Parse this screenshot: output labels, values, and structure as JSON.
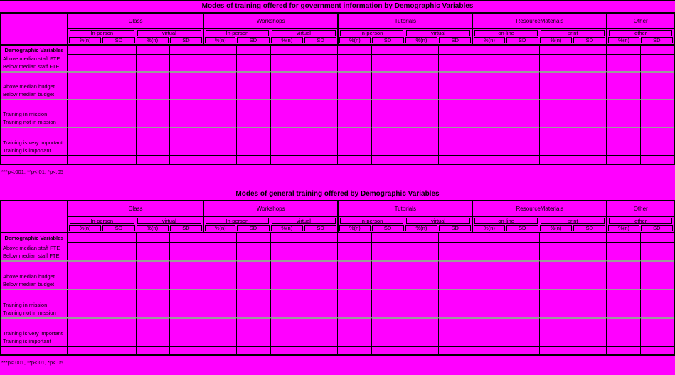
{
  "page": {
    "background_color": "#ff00ff",
    "grid_line_color": "#000000",
    "divider_color": "#9b9b9b"
  },
  "tables": [
    {
      "title": "Modes of training offered for government information by Demographic Variables",
      "row_header": "Demographic Variables",
      "footnote": "***p<.001, **p<.01, *p<.05",
      "groups": [
        {
          "label": "Class",
          "subgroups": [
            {
              "label": "In-person",
              "cols": [
                "%(n)",
                "SD"
              ]
            },
            {
              "label": "virtual",
              "cols": [
                "%(n)",
                "SD"
              ]
            }
          ]
        },
        {
          "label": "Workshops",
          "subgroups": [
            {
              "label": "In-person",
              "cols": [
                "%(n)",
                "SD"
              ]
            },
            {
              "label": "virtual",
              "cols": [
                "%(n)",
                "SD"
              ]
            }
          ]
        },
        {
          "label": "Tutorials",
          "subgroups": [
            {
              "label": "In-person",
              "cols": [
                "%(n)",
                "SD"
              ]
            },
            {
              "label": "virtual",
              "cols": [
                "%(n)",
                "SD"
              ]
            }
          ]
        },
        {
          "label": "ResourceMaterials",
          "subgroups": [
            {
              "label": "on-line",
              "cols": [
                "%(n)",
                "SD"
              ]
            },
            {
              "label": "print",
              "cols": [
                "%(n)",
                "SD"
              ]
            }
          ]
        },
        {
          "label": "Other",
          "subgroups": [
            {
              "label": "other",
              "cols": [
                "%(n)",
                "SD"
              ]
            }
          ]
        }
      ],
      "rows": [
        {
          "labels": [
            "Above median staff FTE",
            "Below median staff FTE"
          ]
        },
        {
          "labels": [
            "Above median budget",
            "Below median budget"
          ]
        },
        {
          "labels": [
            "Training in mission",
            "Training not in mission"
          ]
        },
        {
          "labels": [
            "Training is very important",
            "Training is important"
          ]
        }
      ],
      "cells": "empty"
    },
    {
      "title": "Modes of general training offered by Demographic Variables",
      "row_header": "Demographic Variables",
      "footnote": "***p<.001, **p<.01, *p<.05",
      "groups": [
        {
          "label": "Class",
          "subgroups": [
            {
              "label": "In-person",
              "cols": [
                "%(n)",
                "SD"
              ]
            },
            {
              "label": "virtual",
              "cols": [
                "%(n)",
                "SD"
              ]
            }
          ]
        },
        {
          "label": "Workshops",
          "subgroups": [
            {
              "label": "In-person",
              "cols": [
                "%(n)",
                "SD"
              ]
            },
            {
              "label": "virtual",
              "cols": [
                "%(n)",
                "SD"
              ]
            }
          ]
        },
        {
          "label": "Tutorials",
          "subgroups": [
            {
              "label": "In-person",
              "cols": [
                "%(n)",
                "SD"
              ]
            },
            {
              "label": "virtual",
              "cols": [
                "%(n)",
                "SD"
              ]
            }
          ]
        },
        {
          "label": "ResourceMaterials",
          "subgroups": [
            {
              "label": "on-line",
              "cols": [
                "%(n)",
                "SD"
              ]
            },
            {
              "label": "print",
              "cols": [
                "%(n)",
                "SD"
              ]
            }
          ]
        },
        {
          "label": "Other",
          "subgroups": [
            {
              "label": "other",
              "cols": [
                "%(n)",
                "SD"
              ]
            }
          ]
        }
      ],
      "rows": [
        {
          "labels": [
            "Above median staff FTE",
            "Below median staff FTE"
          ]
        },
        {
          "labels": [
            "Above median budget",
            "Below median budget"
          ]
        },
        {
          "labels": [
            "Training in mission",
            "Training not in mission"
          ]
        },
        {
          "labels": [
            "Training is very important",
            "Training is important"
          ]
        }
      ],
      "cells": "empty"
    }
  ]
}
